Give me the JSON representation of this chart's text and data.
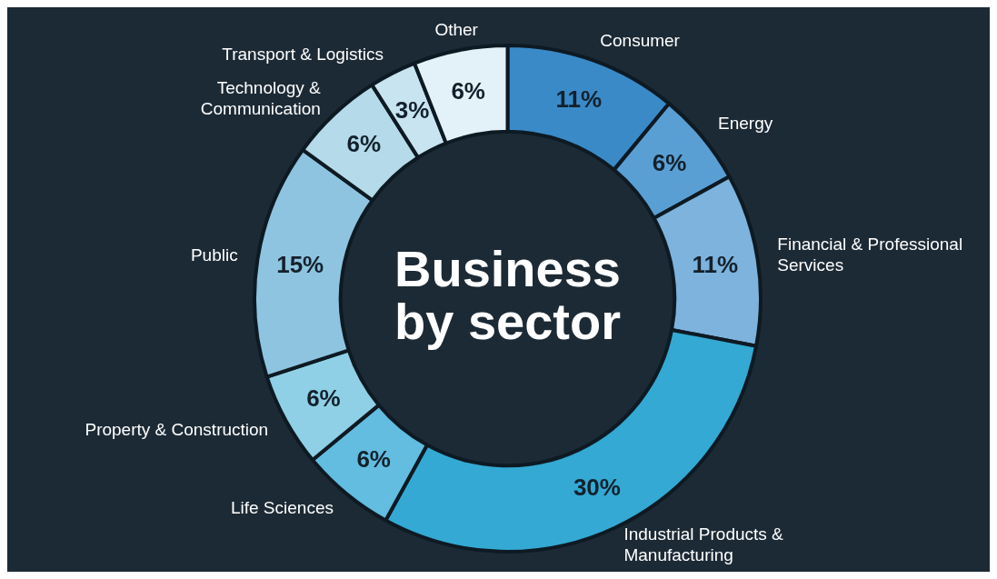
{
  "chart_data": {
    "type": "donut",
    "title": "Business by sector",
    "categories": [
      "Consumer",
      "Energy",
      "Financial & Professional Services",
      "Industrial Products & Manufacturing",
      "Life Sciences",
      "Property & Construction",
      "Public",
      "Technology & Communication",
      "Transport & Logistics",
      "Other"
    ],
    "values": [
      11,
      6,
      11,
      30,
      6,
      6,
      15,
      6,
      3,
      6
    ],
    "value_labels": [
      "11%",
      "6%",
      "11%",
      "30%",
      "6%",
      "6%",
      "15%",
      "6%",
      "3%",
      "6%"
    ],
    "colors": [
      "#3a8ac8",
      "#5a9fd4",
      "#7db3dd",
      "#33a9d3",
      "#62bde0",
      "#8fd0e6",
      "#8ec4e0",
      "#b5daea",
      "#c8e4f0",
      "#e3f2f8"
    ],
    "legend": false
  }
}
